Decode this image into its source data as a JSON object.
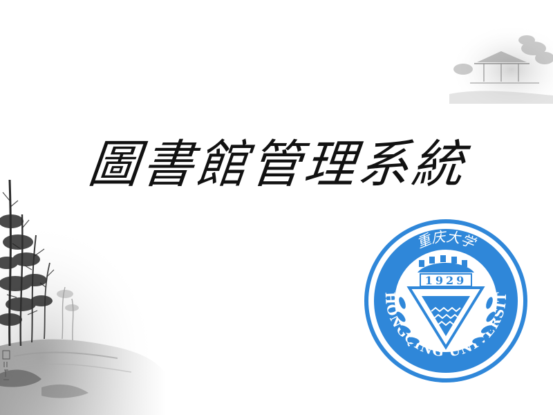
{
  "slide": {
    "title": "圖書館管理系統"
  },
  "seal": {
    "chinese_name": "重庆大学",
    "english_name": "CHONGQING UNIVERSITY",
    "year": "1929",
    "color": "#2f87d9"
  },
  "decoration": {
    "style": "chinese-ink-landscape",
    "ink_color": "#3a3a3a"
  }
}
